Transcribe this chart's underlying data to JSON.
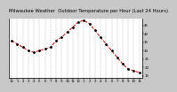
{
  "title": "Milwaukee Weather  Outdoor Temperature per Hour (Last 24 Hours)",
  "hours": [
    0,
    1,
    2,
    3,
    4,
    5,
    6,
    7,
    8,
    9,
    10,
    11,
    12,
    13,
    14,
    15,
    16,
    17,
    18,
    19,
    20,
    21,
    22,
    23
  ],
  "temps": [
    36,
    34,
    32,
    30,
    29,
    30,
    31,
    32,
    36,
    38,
    41,
    44,
    47,
    48,
    46,
    42,
    38,
    34,
    30,
    26,
    22,
    19,
    18,
    17
  ],
  "line_color": "#cc0000",
  "marker_color": "#000000",
  "line_style": "--",
  "marker": ".",
  "marker_size": 2.0,
  "line_width": 0.7,
  "ylim": [
    14,
    52
  ],
  "yticks": [
    15,
    20,
    25,
    30,
    35,
    40,
    45,
    50
  ],
  "ytick_labels": [
    "15",
    "20",
    "25",
    "30",
    "35",
    "40",
    "45",
    "50"
  ],
  "xtick_labels": [
    "12",
    "1",
    "2",
    "3",
    "4",
    "5",
    "6",
    "7",
    "8",
    "9",
    "10",
    "11",
    "12",
    "1",
    "2",
    "3",
    "4",
    "5",
    "6",
    "7",
    "8",
    "9",
    "10",
    "11"
  ],
  "grid_color": "#888888",
  "grid_style": "--",
  "bg_color": "#ffffff",
  "title_fontsize": 3.8,
  "tick_fontsize": 2.8,
  "fig_bg": "#c8c8c8",
  "title_bg": "#c8c8c8"
}
